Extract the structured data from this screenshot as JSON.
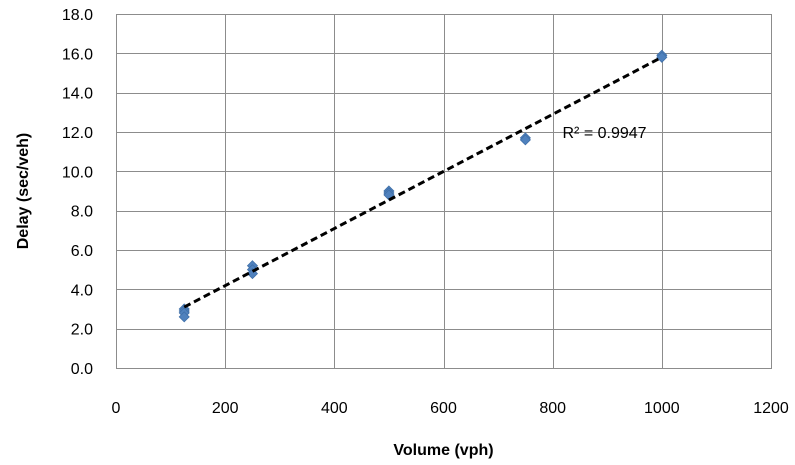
{
  "chart_data": {
    "type": "scatter",
    "title": "",
    "xlabel": "Volume (vph)",
    "ylabel": "Delay (sec/veh)",
    "xlim": [
      0,
      1200
    ],
    "ylim": [
      0,
      18
    ],
    "x_ticks": [
      0,
      200,
      400,
      600,
      800,
      1000,
      1200
    ],
    "x_tick_labels": [
      "0",
      "200",
      "400",
      "600",
      "800",
      "1000",
      "1200"
    ],
    "y_ticks": [
      0,
      2,
      4,
      6,
      8,
      10,
      12,
      14,
      16,
      18
    ],
    "y_tick_labels": [
      "0.0",
      "2.0",
      "4.0",
      "6.0",
      "8.0",
      "10.0",
      "12.0",
      "14.0",
      "16.0",
      "18.0"
    ],
    "grid": true,
    "legend": "none",
    "series": [
      {
        "points": [
          {
            "x": 125,
            "y": 3.0
          },
          {
            "x": 125,
            "y": 2.9
          },
          {
            "x": 125,
            "y": 2.8
          },
          {
            "x": 125,
            "y": 2.6
          },
          {
            "x": 250,
            "y": 5.2
          },
          {
            "x": 250,
            "y": 5.0
          },
          {
            "x": 250,
            "y": 4.8
          },
          {
            "x": 500,
            "y": 9.0
          },
          {
            "x": 500,
            "y": 8.9
          },
          {
            "x": 500,
            "y": 8.8
          },
          {
            "x": 750,
            "y": 11.7
          },
          {
            "x": 750,
            "y": 11.6
          },
          {
            "x": 1000,
            "y": 15.9
          },
          {
            "x": 1000,
            "y": 15.8
          }
        ],
        "marker": "diamond",
        "color": "#4F81BD"
      }
    ],
    "trendline": {
      "type": "linear",
      "style": "dashed",
      "color": "#000000",
      "start": {
        "x": 125,
        "y": 3.1
      },
      "end": {
        "x": 1000,
        "y": 15.8
      }
    },
    "annotations": [
      {
        "text": "R² = 0.9947",
        "x": 895,
        "y": 12.0
      }
    ]
  }
}
